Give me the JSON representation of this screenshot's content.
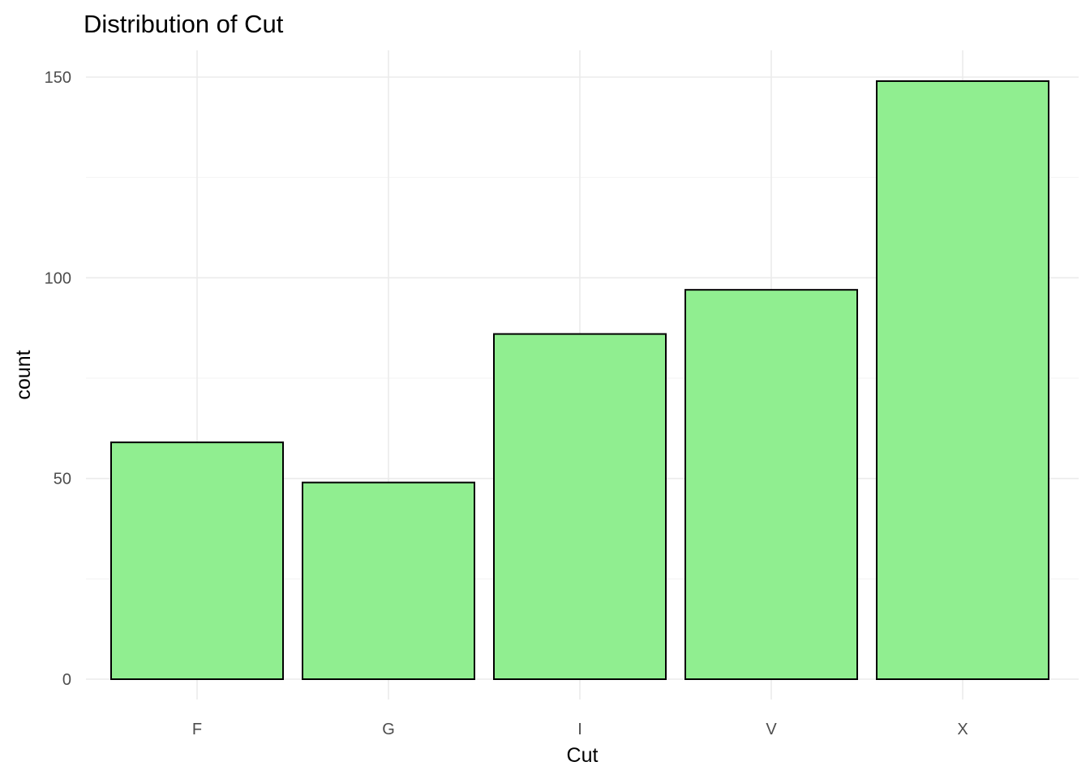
{
  "chart_data": {
    "type": "bar",
    "title": "Distribution of Cut",
    "xlabel": "Cut",
    "ylabel": "count",
    "categories": [
      "F",
      "G",
      "I",
      "V",
      "X"
    ],
    "values": [
      59,
      49,
      86,
      97,
      149
    ],
    "ylim": [
      0,
      150
    ],
    "yticks": [
      0,
      50,
      100,
      150
    ],
    "grid": true,
    "legend": "none",
    "bar_fill": "#90ee90",
    "bar_outline": "#000000"
  }
}
